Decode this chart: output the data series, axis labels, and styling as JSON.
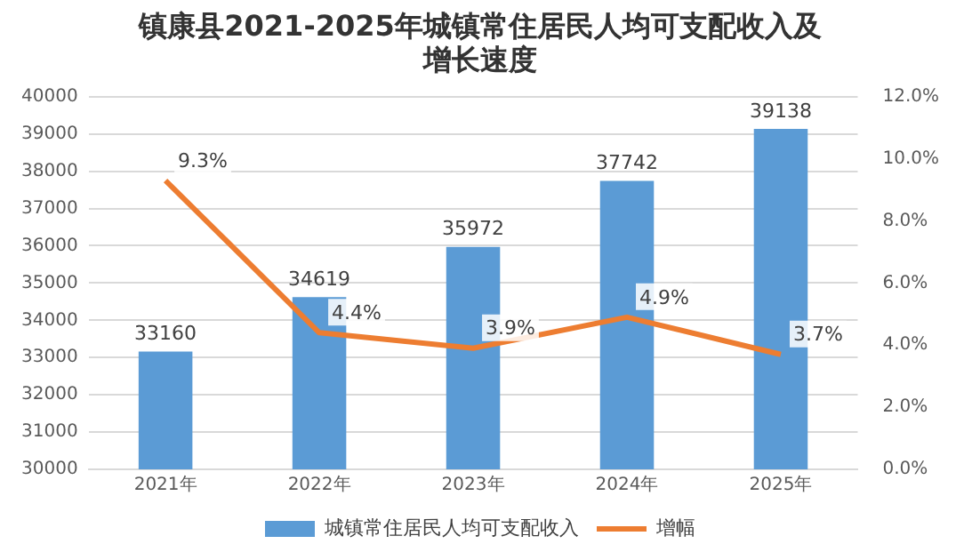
{
  "chart_data": {
    "type": "bar",
    "title": [
      "镇康县2021-2025年城镇常住居民人均可支配收入及",
      "增长速度"
    ],
    "categories": [
      "2021年",
      "2022年",
      "2023年",
      "2024年",
      "2025年"
    ],
    "series": [
      {
        "name": "城镇常住居民人均可支配收入",
        "color": "#5b9bd5",
        "values": [
          33160,
          34619,
          35972,
          37742,
          39138
        ],
        "value_labels": [
          "33160",
          "34619",
          "35972",
          "37742",
          "39138"
        ]
      },
      {
        "name": "增幅",
        "type": "line",
        "axis": "y2",
        "color": "#ed7d31",
        "values": [
          9.3,
          4.4,
          3.9,
          4.9,
          3.7
        ],
        "value_labels": [
          "9.3%",
          "4.4%",
          "3.9%",
          "4.9%",
          "3.7%"
        ]
      }
    ],
    "ylim": [
      30000,
      40000
    ],
    "yticks": [
      30000,
      31000,
      32000,
      33000,
      34000,
      35000,
      36000,
      37000,
      38000,
      39000,
      40000
    ],
    "y2lim": [
      0,
      12
    ],
    "y2ticks": [
      {
        "value": 0,
        "label": "0.0%"
      },
      {
        "value": 2,
        "label": "2.0%"
      },
      {
        "value": 4,
        "label": "4.0%"
      },
      {
        "value": 6,
        "label": "6.0%"
      },
      {
        "value": 8,
        "label": "8.0%"
      },
      {
        "value": 10,
        "label": "10.0%"
      },
      {
        "value": 12,
        "label": "12.0%"
      }
    ],
    "grid": "y",
    "legend": "bottom",
    "marker": "none",
    "line_style": "solid"
  }
}
